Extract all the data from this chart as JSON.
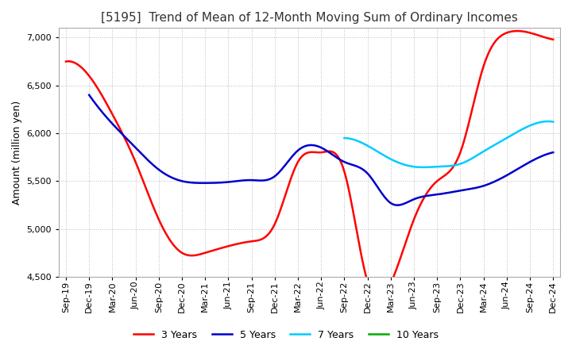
{
  "title": "[5195]  Trend of Mean of 12-Month Moving Sum of Ordinary Incomes",
  "ylabel": "Amount (million yen)",
  "ylim": [
    4500,
    7100
  ],
  "yticks": [
    4500,
    5000,
    5500,
    6000,
    6500,
    7000
  ],
  "background_color": "#ffffff",
  "grid_color": "#bbbbbb",
  "x_labels": [
    "Sep-19",
    "Dec-19",
    "Mar-20",
    "Jun-20",
    "Sep-20",
    "Dec-20",
    "Mar-21",
    "Jun-21",
    "Sep-21",
    "Dec-21",
    "Mar-22",
    "Jun-22",
    "Sep-22",
    "Dec-22",
    "Mar-23",
    "Jun-23",
    "Sep-23",
    "Dec-23",
    "Mar-24",
    "Jun-24",
    "Sep-24",
    "Dec-24"
  ],
  "series": {
    "3 Years": {
      "color": "#ff0000",
      "data": [
        6750,
        6600,
        6200,
        5700,
        5100,
        4750,
        4750,
        4820,
        4870,
        5050,
        5700,
        5800,
        5600,
        4450,
        4430,
        5100,
        5500,
        5800,
        6700,
        7050,
        7050,
        6980
      ]
    },
    "5 Years": {
      "color": "#0000cc",
      "data": [
        null,
        6400,
        6100,
        5850,
        5620,
        5500,
        5480,
        5490,
        5510,
        5550,
        5820,
        5850,
        5700,
        5580,
        5270,
        5310,
        5360,
        5400,
        5450,
        5560,
        5700,
        5800
      ]
    },
    "7 Years": {
      "color": "#00ccff",
      "data": [
        null,
        null,
        null,
        null,
        null,
        null,
        null,
        null,
        null,
        null,
        null,
        null,
        5950,
        5870,
        5730,
        5650,
        5650,
        5680,
        5810,
        5950,
        6080,
        6120
      ]
    },
    "10 Years": {
      "color": "#00aa00",
      "data": [
        null,
        null,
        null,
        null,
        null,
        null,
        null,
        null,
        null,
        null,
        null,
        null,
        null,
        null,
        null,
        null,
        null,
        null,
        null,
        null,
        null,
        null
      ]
    }
  },
  "legend_labels": [
    "3 Years",
    "5 Years",
    "7 Years",
    "10 Years"
  ],
  "title_fontsize": 11,
  "label_fontsize": 9,
  "tick_fontsize": 8
}
